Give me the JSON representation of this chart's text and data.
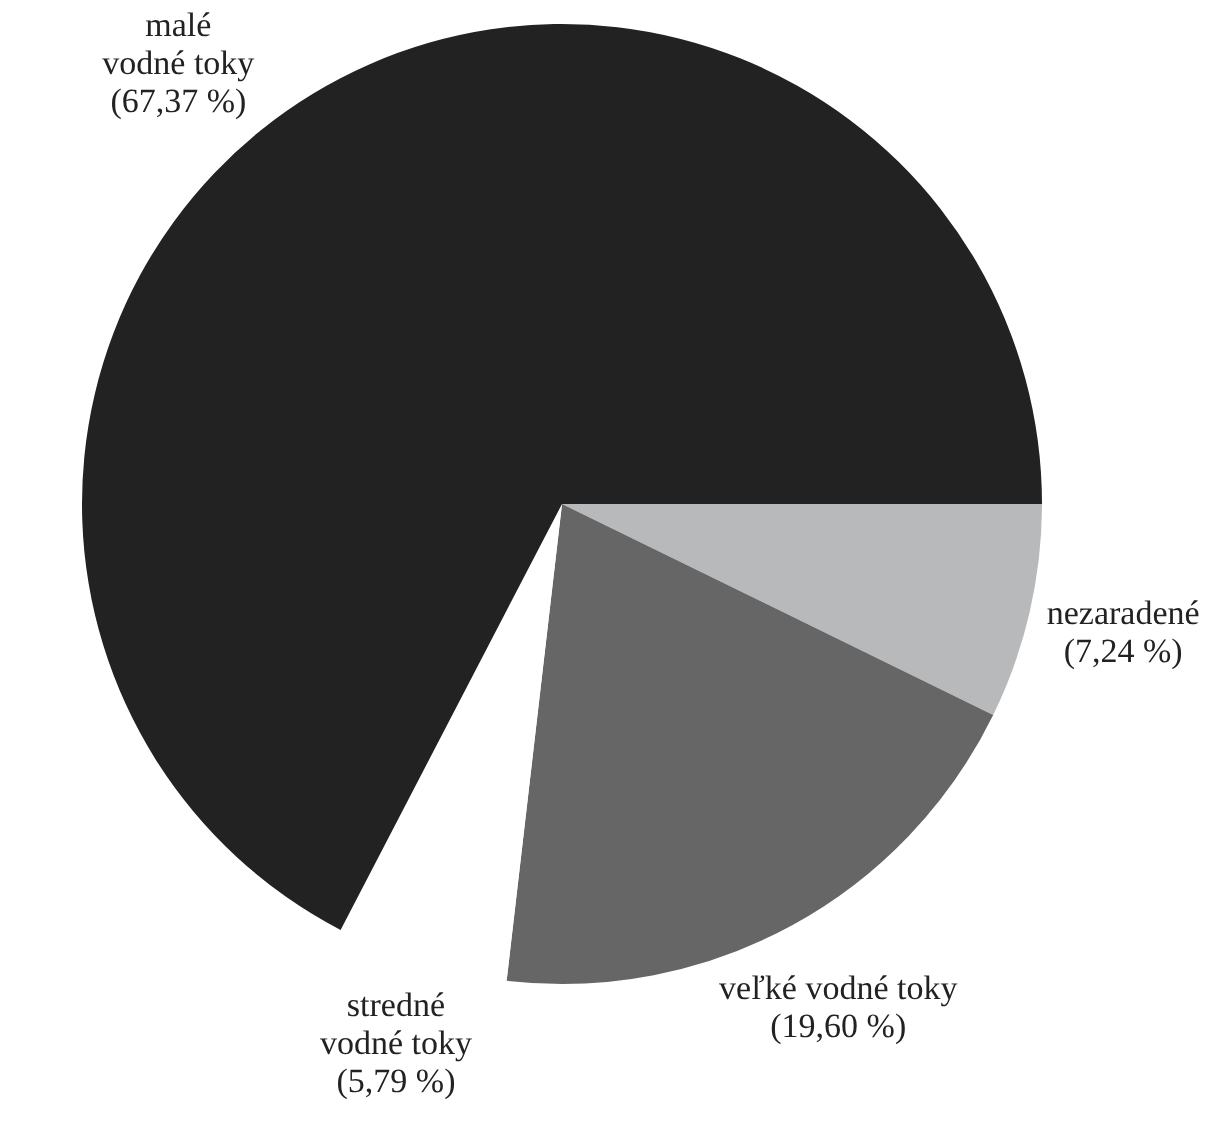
{
  "chart_data": {
    "type": "pie",
    "categories": [
      "nezaradené",
      "veľké vodné toky",
      "stredné vodné toky",
      "malé vodné toky"
    ],
    "values": [
      7.24,
      19.6,
      5.79,
      67.37
    ],
    "value_labels": [
      "(7,24 %)",
      "(19,60 %)",
      "(5,79 %)",
      "(67,37 %)"
    ],
    "colors": [
      "#b8b9bb",
      "#666666",
      "#ffffff",
      "#222222"
    ],
    "legend": false
  }
}
